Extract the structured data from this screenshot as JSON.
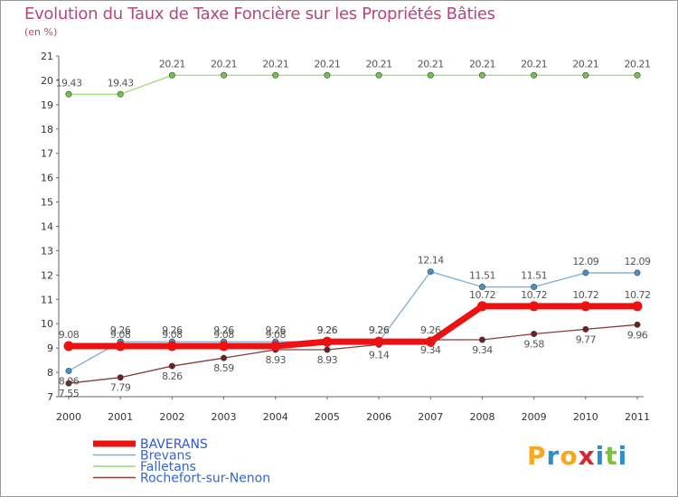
{
  "title": "Evolution du Taux de Taxe Foncière sur les Propriétés Bâties",
  "unit": "(en %)",
  "brand": "Proxiti",
  "brand_colors": [
    "#f7a81b",
    "#2a8fd1",
    "#f7a81b",
    "#d9262e",
    "#2a8fd1",
    "#7cc242",
    "#2a8fd1"
  ],
  "chart_data": {
    "type": "line",
    "title": "Evolution du Taux de Taxe Foncière sur les Propriétés Bâties",
    "ylabel": "(en %)",
    "xlabel": "",
    "ylim": [
      7,
      21
    ],
    "yticks": [
      "7",
      "8",
      "9",
      "10",
      "11",
      "12",
      "13",
      "14",
      "15",
      "16",
      "17",
      "18",
      "19",
      "20",
      "21"
    ],
    "categories": [
      "2000",
      "2001",
      "2002",
      "2003",
      "2004",
      "2005",
      "2006",
      "2007",
      "2008",
      "2009",
      "2010",
      "2011"
    ],
    "series": [
      {
        "name": "BAVERANS",
        "color": "#ee1111",
        "marker_color": "#ee1111",
        "values": [
          9.08,
          9.08,
          9.08,
          9.08,
          9.08,
          9.26,
          9.26,
          9.26,
          10.72,
          10.72,
          10.72,
          10.72
        ],
        "labels": [
          "9.08",
          "9.08",
          "9.08",
          "9.08",
          "9.08",
          "9.26",
          "9.26",
          "9.26",
          "10.72",
          "10.72",
          "10.72",
          "10.72"
        ]
      },
      {
        "name": "Brevans",
        "color": "#7aaed6",
        "marker_color": "#4a90c8",
        "values": [
          8.06,
          9.26,
          9.26,
          9.26,
          9.26,
          9.26,
          9.26,
          12.14,
          11.51,
          11.51,
          12.09,
          12.09
        ],
        "labels": [
          "8.06",
          "9.26",
          "9.26",
          "9.26",
          "9.26",
          "9.26",
          "9.26",
          "12.14",
          "11.51",
          "11.51",
          "12.09",
          "12.09"
        ]
      },
      {
        "name": "Falletans",
        "color": "#99dd77",
        "marker_color": "#6cc44a",
        "values": [
          19.43,
          19.43,
          20.21,
          20.21,
          20.21,
          20.21,
          20.21,
          20.21,
          20.21,
          20.21,
          20.21,
          20.21
        ],
        "labels": [
          "19.43",
          "19.43",
          "20.21",
          "20.21",
          "20.21",
          "20.21",
          "20.21",
          "20.21",
          "20.21",
          "20.21",
          "20.21",
          "20.21"
        ]
      },
      {
        "name": "Rochefort-sur-Nenon",
        "color": "#8b3a3a",
        "marker_color": "#6b2222",
        "values": [
          7.55,
          7.79,
          8.26,
          8.59,
          8.93,
          8.93,
          9.14,
          9.34,
          9.34,
          9.58,
          9.77,
          9.96
        ],
        "labels": [
          "7.55",
          "7.79",
          "8.26",
          "8.59",
          "8.93",
          "8.93",
          "9.14",
          "9.34",
          "9.34",
          "9.58",
          "9.77",
          "9.96"
        ]
      }
    ],
    "legend": [
      "BAVERANS",
      "Brevans",
      "Falletans",
      "Rochefort-sur-Nenon"
    ],
    "legend_position": "bottom-left",
    "grid": false
  }
}
